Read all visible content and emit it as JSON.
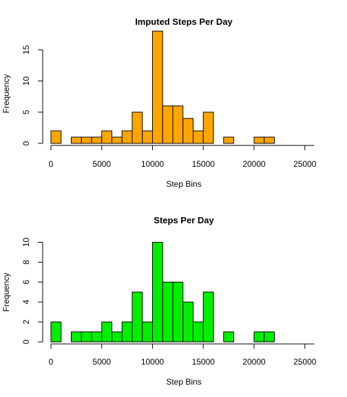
{
  "chart_data": [
    {
      "type": "bar",
      "title": "Imputed Steps Per Day",
      "xlabel": "Step Bins",
      "ylabel": "Frequency",
      "fill_color": "#FFA500",
      "border_color": "#000000",
      "bin_width": 1000,
      "bins_start": [
        0,
        1000,
        2000,
        3000,
        4000,
        5000,
        6000,
        7000,
        8000,
        9000,
        10000,
        11000,
        12000,
        13000,
        14000,
        15000,
        16000,
        17000,
        18000,
        19000,
        20000,
        21000,
        22000,
        23000,
        24000,
        25000
      ],
      "values": [
        2,
        0,
        1,
        1,
        1,
        2,
        1,
        2,
        5,
        2,
        18,
        6,
        6,
        4,
        2,
        5,
        0,
        1,
        0,
        0,
        1,
        1,
        0,
        0,
        0,
        0
      ],
      "xlim": [
        0,
        26000
      ],
      "ylim": [
        0,
        18
      ],
      "x_ticks": [
        0,
        5000,
        10000,
        15000,
        20000,
        25000
      ],
      "y_ticks": [
        0,
        5,
        10,
        15
      ],
      "grid": false
    },
    {
      "type": "bar",
      "title": "Steps Per Day",
      "xlabel": "Step Bins",
      "ylabel": "Frequency",
      "fill_color": "#00EE00",
      "border_color": "#000000",
      "bin_width": 1000,
      "bins_start": [
        0,
        1000,
        2000,
        3000,
        4000,
        5000,
        6000,
        7000,
        8000,
        9000,
        10000,
        11000,
        12000,
        13000,
        14000,
        15000,
        16000,
        17000,
        18000,
        19000,
        20000,
        21000
      ],
      "values": [
        2,
        0,
        1,
        1,
        1,
        2,
        1,
        2,
        5,
        2,
        10,
        6,
        6,
        4,
        2,
        5,
        0,
        1,
        0,
        0,
        1,
        1
      ],
      "xlim": [
        0,
        26000
      ],
      "ylim": [
        0,
        10
      ],
      "x_ticks": [
        0,
        5000,
        10000,
        15000,
        20000,
        25000
      ],
      "y_ticks": [
        0,
        2,
        4,
        6,
        8,
        10
      ],
      "grid": false
    }
  ]
}
